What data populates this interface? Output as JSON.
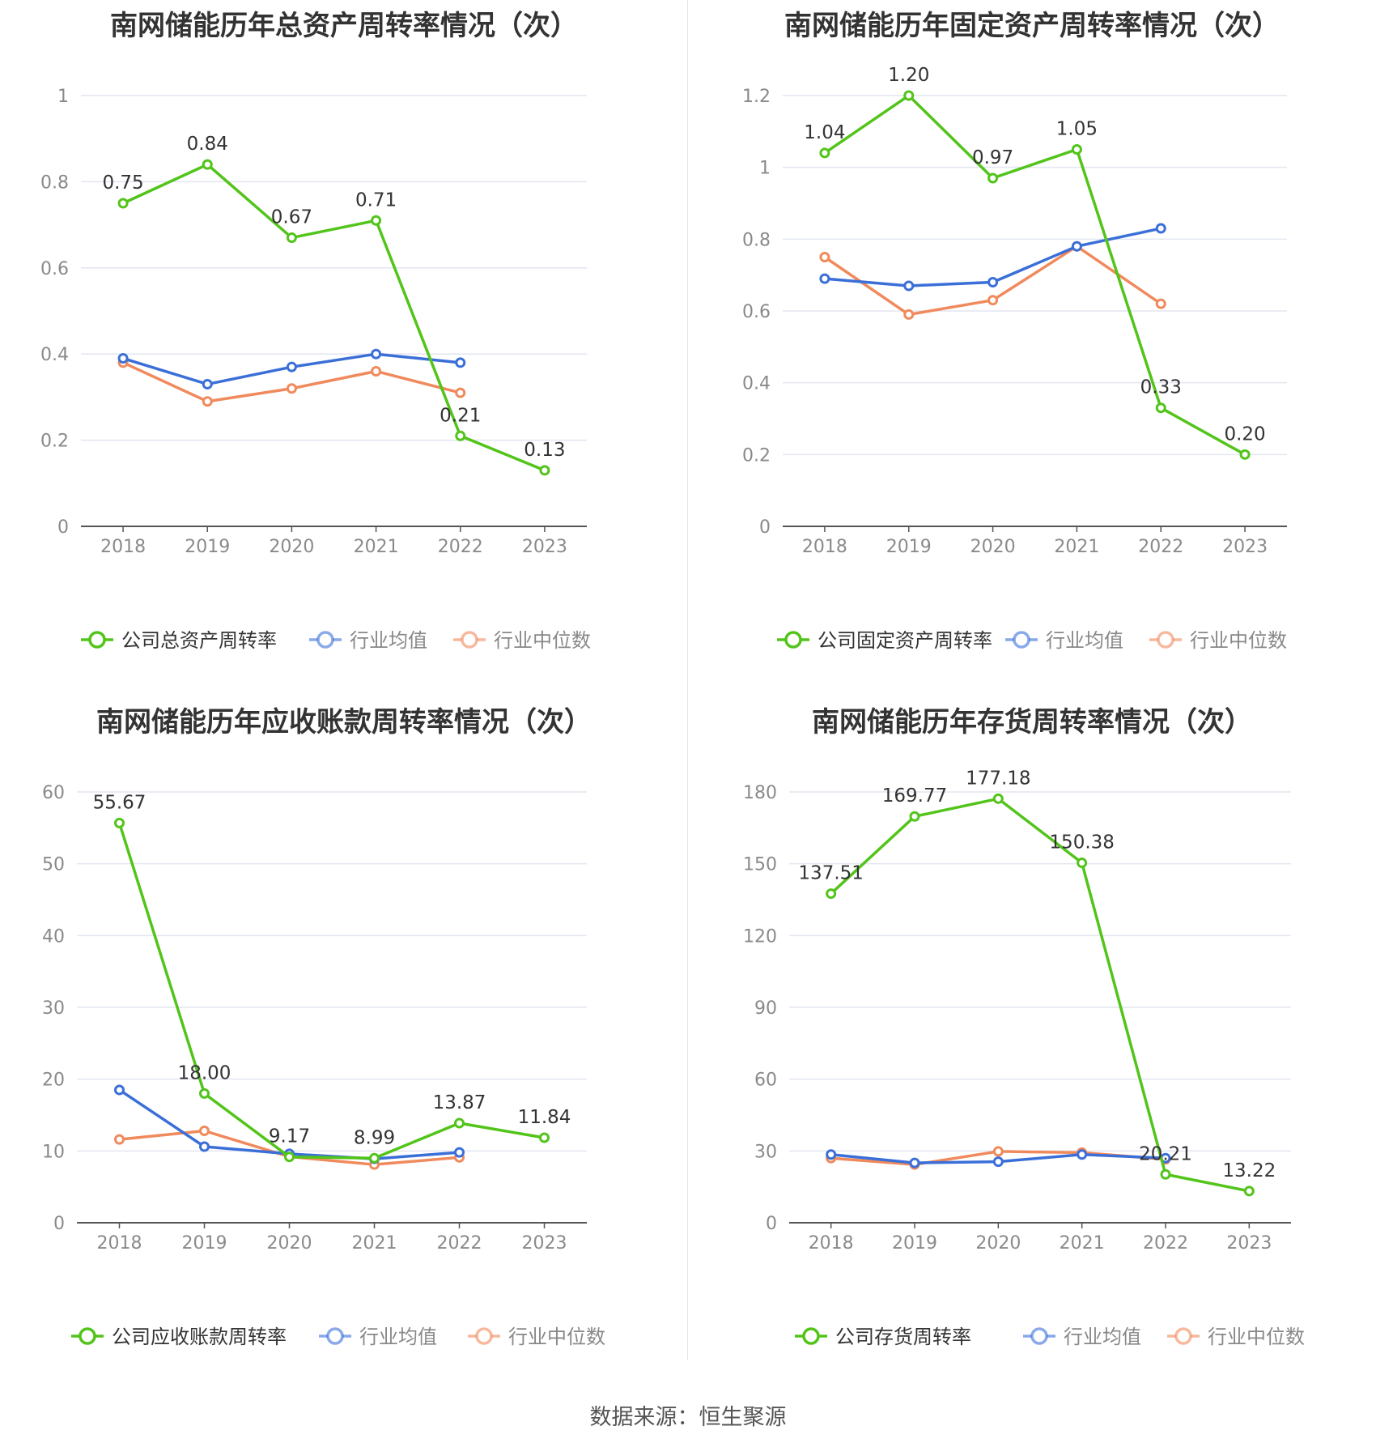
{
  "footer": {
    "source": "数据来源：恒生聚源"
  },
  "colors": {
    "company": "#52c41a",
    "avg": "#3b6fd8",
    "median": "#f08a5d",
    "grid": "#e3e6f0",
    "axis": "#555555"
  },
  "chart_data": [
    {
      "type": "line",
      "title": "南网储能历年总资产周转率情况（次）",
      "categories": [
        "2018",
        "2019",
        "2020",
        "2021",
        "2022",
        "2023"
      ],
      "yticks": [
        "0",
        "0.2",
        "0.4",
        "0.6",
        "0.8",
        "1"
      ],
      "ylim": [
        0,
        1
      ],
      "series": [
        {
          "name": "公司总资产周转率",
          "key": "company",
          "values": [
            0.75,
            0.84,
            0.67,
            0.71,
            0.21,
            0.13
          ],
          "labels": [
            "0.75",
            "0.84",
            "0.67",
            "0.71",
            "0.21",
            "0.13"
          ]
        },
        {
          "name": "行业均值",
          "key": "avg",
          "values": [
            0.39,
            0.33,
            0.37,
            0.4,
            0.38,
            null
          ]
        },
        {
          "name": "行业中位数",
          "key": "median",
          "values": [
            0.38,
            0.29,
            0.32,
            0.36,
            0.31,
            null
          ]
        }
      ]
    },
    {
      "type": "line",
      "title": "南网储能历年固定资产周转率情况（次）",
      "categories": [
        "2018",
        "2019",
        "2020",
        "2021",
        "2022",
        "2023"
      ],
      "yticks": [
        "0",
        "0.2",
        "0.4",
        "0.6",
        "0.8",
        "1",
        "1.2"
      ],
      "ylim": [
        0,
        1.2
      ],
      "series": [
        {
          "name": "公司固定资产周转率",
          "key": "company",
          "values": [
            1.04,
            1.2,
            0.97,
            1.05,
            0.33,
            0.2
          ],
          "labels": [
            "1.04",
            "1.20",
            "0.97",
            "1.05",
            "0.33",
            "0.20"
          ]
        },
        {
          "name": "行业均值",
          "key": "avg",
          "values": [
            0.69,
            0.67,
            0.68,
            0.78,
            0.83,
            null
          ]
        },
        {
          "name": "行业中位数",
          "key": "median",
          "values": [
            0.75,
            0.59,
            0.63,
            0.78,
            0.62,
            null
          ]
        }
      ]
    },
    {
      "type": "line",
      "title": "南网储能历年应收账款周转率情况（次）",
      "categories": [
        "2018",
        "2019",
        "2020",
        "2021",
        "2022",
        "2023"
      ],
      "yticks": [
        "0",
        "10",
        "20",
        "30",
        "40",
        "50",
        "60"
      ],
      "ylim": [
        0,
        60
      ],
      "series": [
        {
          "name": "公司应收账款周转率",
          "key": "company",
          "values": [
            55.67,
            18.0,
            9.17,
            8.99,
            13.87,
            11.84
          ],
          "labels": [
            "55.67",
            "18.00",
            "9.17",
            "8.99",
            "13.87",
            "11.84"
          ]
        },
        {
          "name": "行业均值",
          "key": "avg",
          "values": [
            18.5,
            10.6,
            9.6,
            8.9,
            9.8,
            null
          ]
        },
        {
          "name": "行业中位数",
          "key": "median",
          "values": [
            11.6,
            12.8,
            9.2,
            8.1,
            9.1,
            null
          ]
        }
      ]
    },
    {
      "type": "line",
      "title": "南网储能历年存货周转率情况（次）",
      "categories": [
        "2018",
        "2019",
        "2020",
        "2021",
        "2022",
        "2023"
      ],
      "yticks": [
        "0",
        "30",
        "60",
        "90",
        "120",
        "150",
        "180"
      ],
      "ylim": [
        0,
        180
      ],
      "series": [
        {
          "name": "公司存货周转率",
          "key": "company",
          "values": [
            137.51,
            169.77,
            177.18,
            150.38,
            20.21,
            13.22
          ],
          "labels": [
            "137.51",
            "169.77",
            "177.18",
            "150.38",
            "20.21",
            "13.22"
          ]
        },
        {
          "name": "行业均值",
          "key": "avg",
          "values": [
            28.5,
            25.0,
            25.5,
            28.5,
            27.0,
            null
          ]
        },
        {
          "name": "行业中位数",
          "key": "median",
          "values": [
            27.0,
            24.3,
            29.8,
            29.3,
            26.5,
            null
          ]
        }
      ]
    }
  ]
}
